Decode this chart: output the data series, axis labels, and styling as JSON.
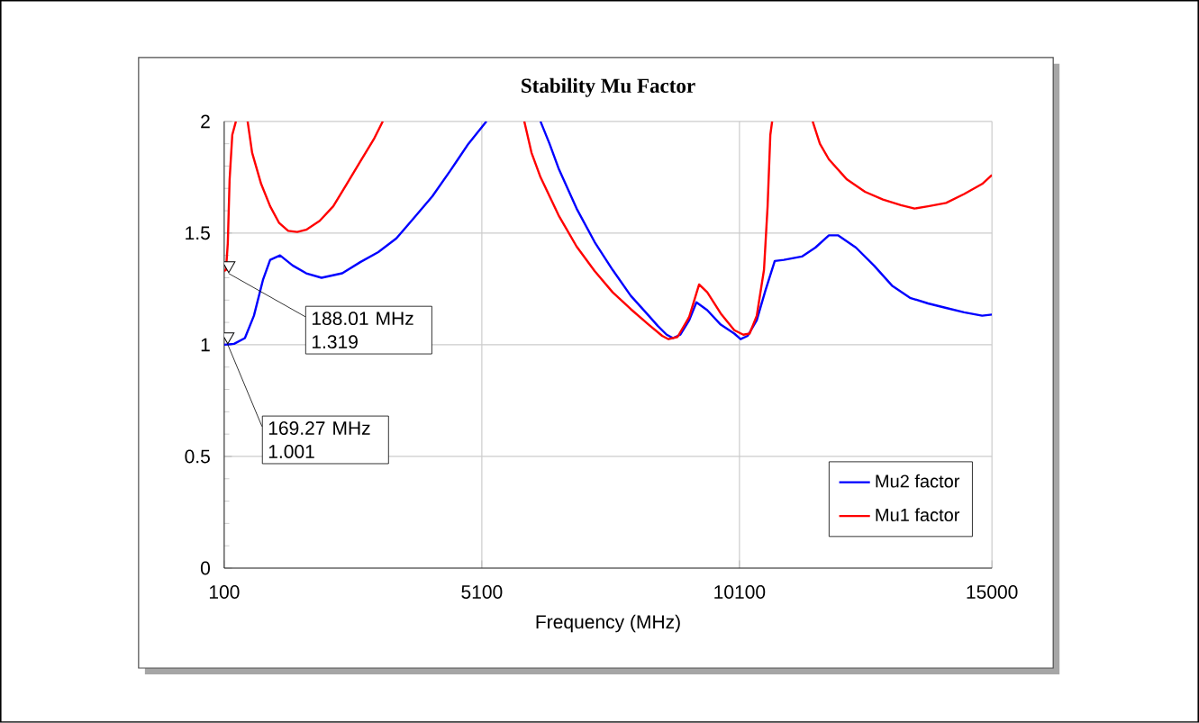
{
  "chart_data": {
    "type": "line",
    "title": "Stability Mu Factor",
    "xlabel": "Frequency (MHz)",
    "xlim": [
      100,
      15000
    ],
    "ylim": [
      0,
      2
    ],
    "xticks": [
      100,
      5100,
      10100,
      15000
    ],
    "yticks": [
      0,
      0.5,
      1,
      1.5,
      2
    ],
    "grid": true,
    "legend": "bottom right",
    "marker": "none",
    "line_style": "solid",
    "series": [
      {
        "name": "Mu2 factor",
        "color": "#0000ff",
        "x": [
          100,
          292,
          502,
          677,
          852,
          992,
          1184,
          1429,
          1692,
          1989,
          2391,
          2741,
          3091,
          3441,
          3791,
          4140,
          4490,
          4840,
          5190,
          5700,
          6239,
          6414,
          6589,
          6939,
          7289,
          7639,
          7989,
          8339,
          8513,
          8688,
          8811,
          8950,
          9125,
          9265,
          9475,
          9737,
          10000,
          10122,
          10260,
          10436,
          10600,
          10785,
          10962,
          11311,
          11573,
          11836,
          12011,
          12361,
          12710,
          13060,
          13410,
          13760,
          14110,
          14460,
          14810,
          15000
        ],
        "values": [
          1.0,
          1.004,
          1.03,
          1.13,
          1.29,
          1.38,
          1.4,
          1.355,
          1.32,
          1.3,
          1.32,
          1.37,
          1.415,
          1.476,
          1.57,
          1.665,
          1.78,
          1.9,
          2.0,
          null,
          2.0,
          1.9,
          1.79,
          1.61,
          1.46,
          1.335,
          1.22,
          1.13,
          1.085,
          1.045,
          1.03,
          1.045,
          1.11,
          1.19,
          1.155,
          1.09,
          1.05,
          1.025,
          1.04,
          1.11,
          1.24,
          1.375,
          1.38,
          1.395,
          1.435,
          1.49,
          1.49,
          1.435,
          1.355,
          1.265,
          1.21,
          1.185,
          1.165,
          1.145,
          1.13,
          1.135
        ]
      },
      {
        "name": "Mu1 factor",
        "color": "#ff0000",
        "x": [
          100,
          135,
          170,
          205,
          257,
          327,
          450,
          555,
          642,
          817,
          992,
          1167,
          1342,
          1517,
          1692,
          1954,
          2216,
          2479,
          2741,
          3003,
          3178,
          4500,
          5924,
          6064,
          6239,
          6589,
          6939,
          7289,
          7639,
          7989,
          8339,
          8600,
          8723,
          8898,
          9125,
          9317,
          9475,
          9737,
          10000,
          10175,
          10297,
          10436,
          10576,
          10646,
          10699,
          10734,
          11100,
          11521,
          11661,
          11836,
          12186,
          12536,
          12885,
          13235,
          13498,
          13760,
          14110,
          14460,
          14810,
          15000
        ],
        "values": [
          1.33,
          1.335,
          1.455,
          1.74,
          1.94,
          2.0,
          null,
          2.0,
          1.86,
          1.72,
          1.62,
          1.545,
          1.51,
          1.505,
          1.515,
          1.555,
          1.62,
          1.72,
          1.82,
          1.92,
          2.0,
          null,
          2.0,
          1.86,
          1.75,
          1.58,
          1.44,
          1.33,
          1.235,
          1.16,
          1.09,
          1.04,
          1.025,
          1.035,
          1.125,
          1.27,
          1.235,
          1.14,
          1.065,
          1.045,
          1.05,
          1.13,
          1.335,
          1.62,
          1.94,
          2.0,
          null,
          2.0,
          1.9,
          1.83,
          1.74,
          1.685,
          1.65,
          1.625,
          1.61,
          1.62,
          1.635,
          1.675,
          1.72,
          1.76
        ]
      }
    ],
    "annotations": [
      {
        "text": "188.01 MHz 1.319",
        "x": 188.01,
        "y": 1.319
      },
      {
        "text": "169.27 MHz 1.001",
        "x": 169.27,
        "y": 1.001
      }
    ]
  }
}
